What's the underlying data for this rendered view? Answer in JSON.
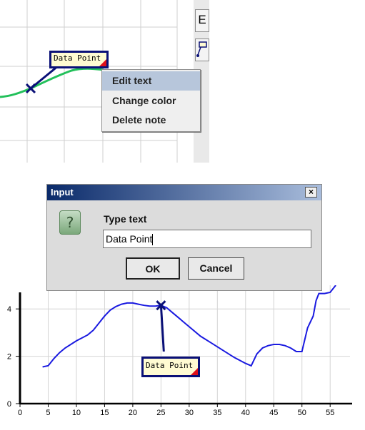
{
  "top_note": {
    "label": "Data Point"
  },
  "context_menu": {
    "items": [
      {
        "label": "Edit text",
        "selected": true
      },
      {
        "label": "Change color",
        "selected": false
      },
      {
        "label": "Delete note",
        "selected": false
      }
    ]
  },
  "side_toolbar": {
    "partial_label": "E"
  },
  "dialog": {
    "title": "Input",
    "close_glyph": "×",
    "prompt": "Type text",
    "input_value": "Data Point",
    "ok_label": "OK",
    "cancel_label": "Cancel",
    "icon": "question-icon"
  },
  "bottom_note": {
    "label": "Data Point"
  },
  "chart_data": {
    "type": "line",
    "x_ticks": [
      0,
      5,
      10,
      15,
      20,
      25,
      30,
      35,
      40,
      45,
      50,
      55
    ],
    "y_ticks": [
      0,
      2,
      4
    ],
    "xlim": [
      0,
      57
    ],
    "ylim": [
      0,
      5
    ],
    "grid": true,
    "series": [
      {
        "color": "#1a1ae0",
        "points": [
          [
            4,
            1.55
          ],
          [
            5,
            1.6
          ],
          [
            6,
            1.9
          ],
          [
            7,
            2.15
          ],
          [
            8,
            2.35
          ],
          [
            10,
            2.65
          ],
          [
            12,
            2.9
          ],
          [
            13,
            3.1
          ],
          [
            14,
            3.4
          ],
          [
            15,
            3.7
          ],
          [
            16,
            3.95
          ],
          [
            17,
            4.1
          ],
          [
            18,
            4.2
          ],
          [
            19,
            4.25
          ],
          [
            20,
            4.25
          ],
          [
            21,
            4.2
          ],
          [
            22,
            4.15
          ],
          [
            23,
            4.12
          ],
          [
            24,
            4.12
          ],
          [
            25,
            4.15
          ],
          [
            26,
            4.05
          ],
          [
            27,
            3.85
          ],
          [
            28,
            3.65
          ],
          [
            29,
            3.45
          ],
          [
            30,
            3.25
          ],
          [
            32,
            2.85
          ],
          [
            34,
            2.55
          ],
          [
            36,
            2.25
          ],
          [
            38,
            1.95
          ],
          [
            40,
            1.7
          ],
          [
            41,
            1.6
          ],
          [
            42,
            2.1
          ],
          [
            43,
            2.35
          ],
          [
            44,
            2.45
          ],
          [
            45,
            2.5
          ],
          [
            46,
            2.5
          ],
          [
            47,
            2.45
          ],
          [
            48,
            2.35
          ],
          [
            49,
            2.2
          ],
          [
            50,
            2.2
          ],
          [
            51,
            3.2
          ],
          [
            52,
            3.7
          ],
          [
            52.5,
            4.35
          ],
          [
            53,
            4.65
          ],
          [
            54,
            4.65
          ],
          [
            55,
            4.7
          ],
          [
            56,
            5.0
          ]
        ]
      }
    ],
    "marker": {
      "x": 25,
      "y": 4.15
    },
    "note_anchor": {
      "x": 25.5,
      "y": 2.2
    }
  }
}
